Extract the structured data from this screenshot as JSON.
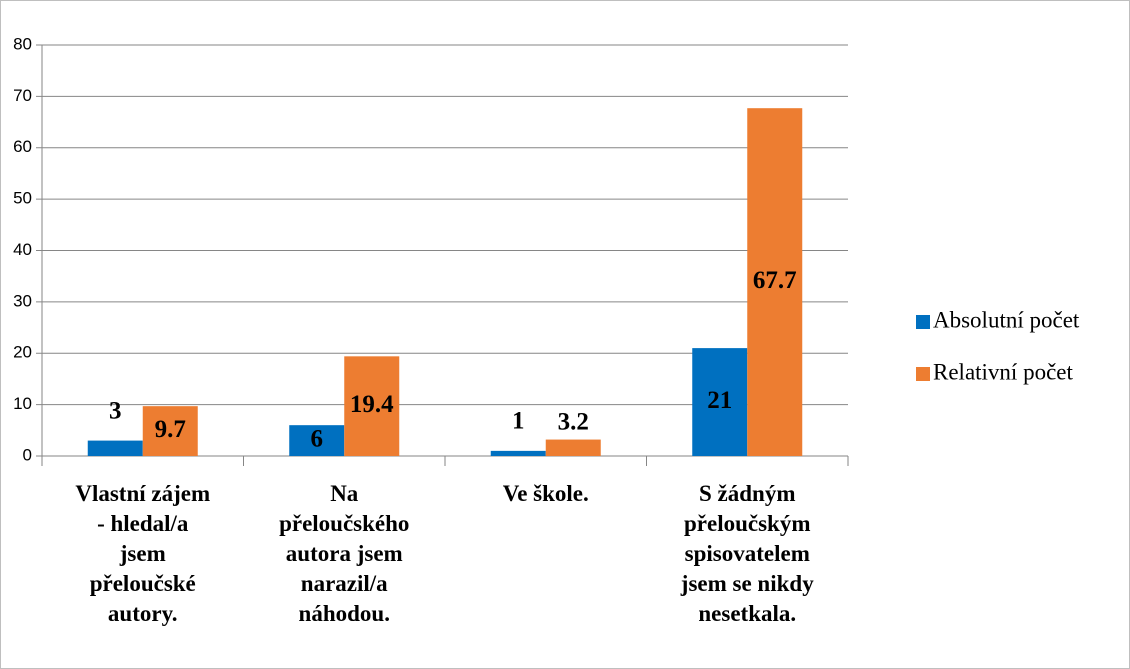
{
  "chart_data": {
    "type": "bar",
    "categories": [
      "Vlastní zájem\n- hledal/a\njsem\npřeloučské\nautory.",
      "Na\npřeloučského\nautora jsem\nnarazil/a\nnáhodou.",
      "Ve škole.",
      "S žádným\npřeloučským\nspisovatelem\njsem se nikdy\nnesetkala."
    ],
    "series": [
      {
        "name": "Absolutní počet",
        "color": "#0070c0",
        "values": [
          3,
          6,
          1,
          21
        ]
      },
      {
        "name": "Relativní počet",
        "color": "#ed7d31",
        "values": [
          9.7,
          19.4,
          3.2,
          67.7
        ]
      }
    ],
    "ylim": [
      0,
      80
    ],
    "yticks": [
      0,
      10,
      20,
      30,
      40,
      50,
      60,
      70,
      80
    ],
    "grid": true,
    "legend": "right"
  }
}
